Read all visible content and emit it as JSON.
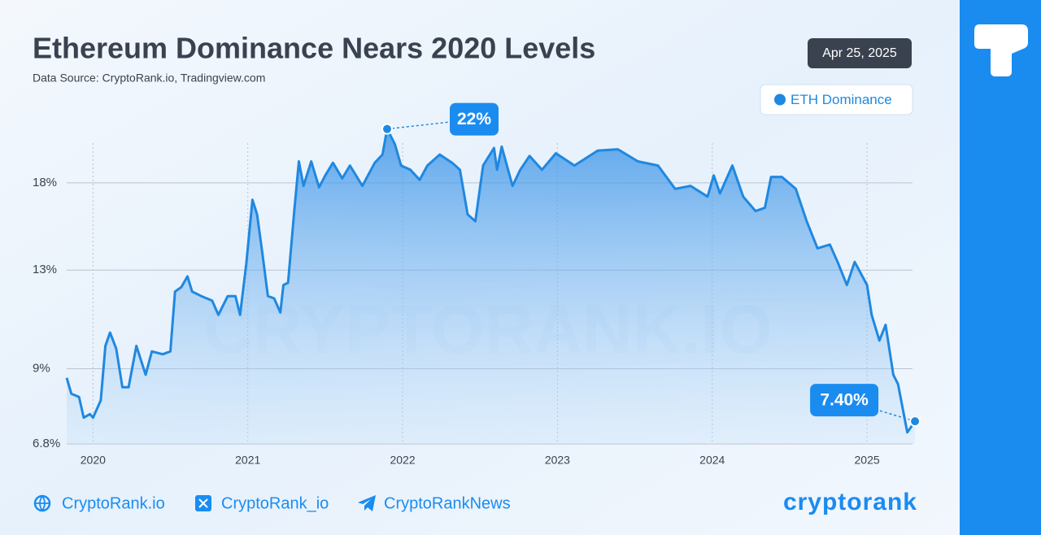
{
  "header": {
    "title": "Ethereum Dominance Nears 2020 Levels",
    "subtitle": "Data Source: CryptoRank.io, Tradingview.com",
    "date": "Apr 25, 2025"
  },
  "chart_data": {
    "type": "line",
    "watermark": "CRYPTORANK.IO",
    "series": [
      {
        "name": "ETH Dominance",
        "color": "#1f88e0",
        "x": [
          2019.83,
          2019.86,
          2019.91,
          2019.94,
          2019.98,
          2020.0,
          2020.05,
          2020.08,
          2020.11,
          2020.15,
          2020.19,
          2020.23,
          2020.28,
          2020.34,
          2020.38,
          2020.45,
          2020.5,
          2020.53,
          2020.57,
          2020.61,
          2020.64,
          2020.7,
          2020.77,
          2020.81,
          2020.87,
          2020.92,
          2020.95,
          2020.99,
          2021.03,
          2021.06,
          2021.09,
          2021.13,
          2021.17,
          2021.21,
          2021.23,
          2021.26,
          2021.3,
          2021.33,
          2021.36,
          2021.41,
          2021.46,
          2021.5,
          2021.55,
          2021.61,
          2021.66,
          2021.74,
          2021.82,
          2021.87,
          2021.9,
          2021.95,
          2021.99,
          2022.05,
          2022.11,
          2022.16,
          2022.24,
          2022.32,
          2022.37,
          2022.42,
          2022.47,
          2022.52,
          2022.59,
          2022.61,
          2022.64,
          2022.71,
          2022.76,
          2022.82,
          2022.9,
          2022.99,
          2023.11,
          2023.26,
          2023.39,
          2023.52,
          2023.65,
          2023.76,
          2023.86,
          2023.97,
          2024.01,
          2024.05,
          2024.13,
          2024.2,
          2024.28,
          2024.34,
          2024.38,
          2024.45,
          2024.54,
          2024.61,
          2024.68,
          2024.76,
          2024.81,
          2024.87,
          2024.92,
          2025.0,
          2025.03,
          2025.08,
          2025.12,
          2025.17,
          2025.2,
          2025.26,
          2025.31
        ],
        "values": [
          8.7,
          8.2,
          8.1,
          7.5,
          7.6,
          7.5,
          8.0,
          9.8,
          10.3,
          9.7,
          8.4,
          8.4,
          9.8,
          8.8,
          9.6,
          9.5,
          9.6,
          12.0,
          12.2,
          12.7,
          12.0,
          11.8,
          11.6,
          11.0,
          11.8,
          11.8,
          11.0,
          13.3,
          16.9,
          16.0,
          14.1,
          11.8,
          11.7,
          11.1,
          12.3,
          12.4,
          16.2,
          19.5,
          17.8,
          19.5,
          17.7,
          18.5,
          19.4,
          18.3,
          19.2,
          17.8,
          19.4,
          20.0,
          22.0,
          20.8,
          19.2,
          18.9,
          18.2,
          19.2,
          20.0,
          19.4,
          18.9,
          16.0,
          15.6,
          19.2,
          20.5,
          18.9,
          20.6,
          17.8,
          18.9,
          19.9,
          18.9,
          20.1,
          19.2,
          20.3,
          20.4,
          19.5,
          19.2,
          17.6,
          17.8,
          17.1,
          18.5,
          17.3,
          19.2,
          17.1,
          16.2,
          16.4,
          18.4,
          18.4,
          17.6,
          15.6,
          14.1,
          14.3,
          13.4,
          12.3,
          13.4,
          12.3,
          11.0,
          10.0,
          10.6,
          8.8,
          8.5,
          7.1,
          7.4
        ]
      }
    ],
    "xlim": [
      2019.83,
      2025.32
    ],
    "xticks": [
      2020,
      2021,
      2022,
      2023,
      2024,
      2025
    ],
    "ylim": [
      6.8,
      23
    ],
    "yscale": "log",
    "yticks": [
      {
        "value": 6.8,
        "label": "6.8%"
      },
      {
        "value": 9,
        "label": "9%"
      },
      {
        "value": 13,
        "label": "13%"
      },
      {
        "value": 18,
        "label": "18%"
      }
    ],
    "grid": true,
    "legend": "top-right",
    "annotations": [
      {
        "text": "22%",
        "x": 2021.9,
        "y": 22
      },
      {
        "text": "7.40%",
        "x": 2025.31,
        "y": 7.4
      }
    ]
  },
  "footer": {
    "links": [
      "CryptoRank.io",
      "CryptoRank_io",
      "CryptoRankNews"
    ],
    "brand": "cryptorank"
  }
}
